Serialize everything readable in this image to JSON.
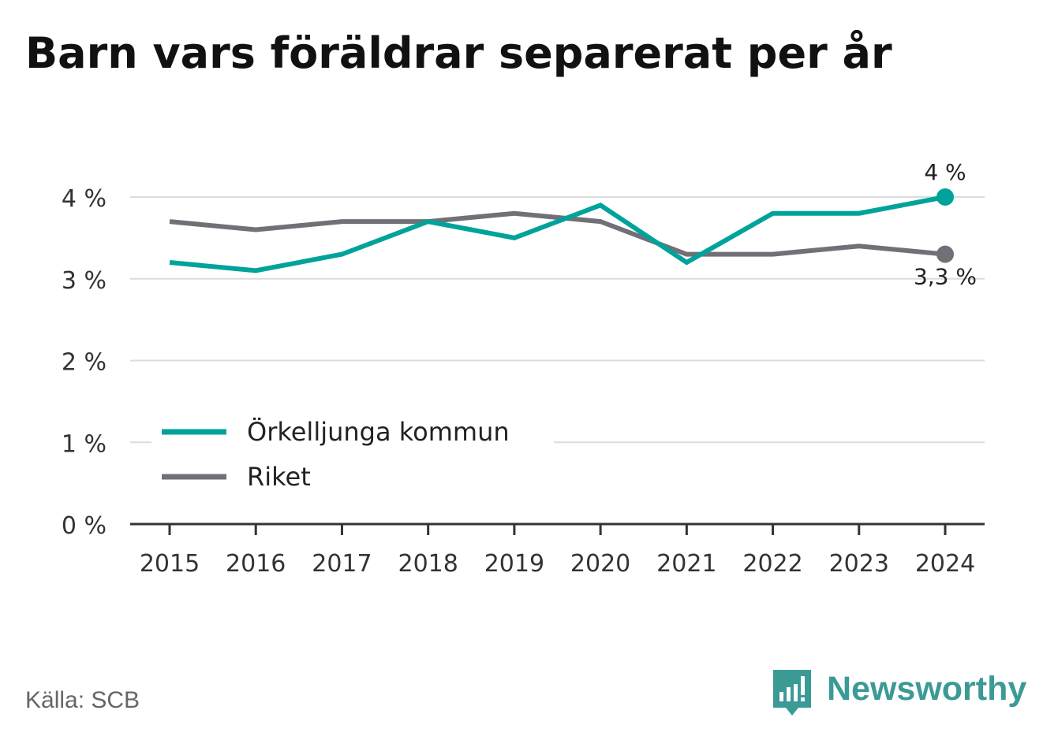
{
  "title": "Barn vars föräldrar separerat per år",
  "source": "Källa: SCB",
  "brand": {
    "name": "Newsworthy",
    "icon": "bar-chart-speech-bubble-icon",
    "color": "#3c9a95"
  },
  "chart_data": {
    "type": "line",
    "x": [
      "2015",
      "2016",
      "2017",
      "2018",
      "2019",
      "2020",
      "2021",
      "2022",
      "2023",
      "2024"
    ],
    "ylim": [
      0,
      4
    ],
    "yticks": [
      0,
      1,
      2,
      3,
      4
    ],
    "ytick_labels": [
      "0 %",
      "1 %",
      "2 %",
      "3 %",
      "4 %"
    ],
    "grid": true,
    "legend": "bottom-left",
    "series": [
      {
        "name": "Örkelljunga kommun",
        "color": "#00a39a",
        "values": [
          3.2,
          3.1,
          3.3,
          3.7,
          3.5,
          3.9,
          3.2,
          3.8,
          3.8,
          4.0
        ],
        "end_label": "4 %"
      },
      {
        "name": "Riket",
        "color": "#717076",
        "values": [
          3.7,
          3.6,
          3.7,
          3.7,
          3.8,
          3.7,
          3.3,
          3.3,
          3.4,
          3.3
        ],
        "end_label": "3,3 %"
      }
    ]
  }
}
